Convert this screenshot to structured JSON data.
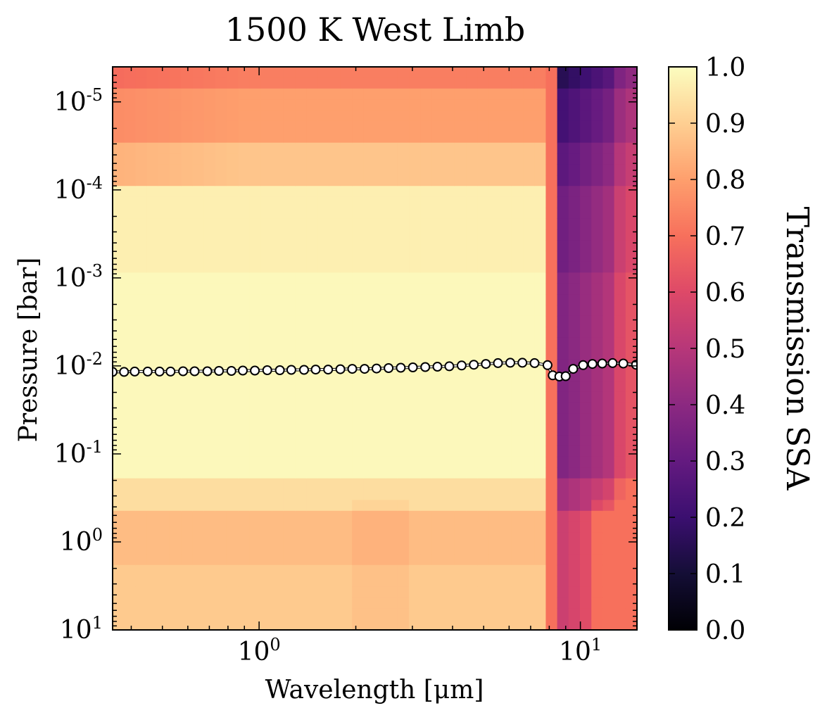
{
  "chart_data": {
    "type": "heatmap",
    "title": "1500 K West Limb",
    "xlabel": "Wavelength [μm]",
    "ylabel": "Pressure [bar]",
    "x_scale": "log",
    "y_scale": "log",
    "y_inverted": true,
    "xlim": [
      0.35,
      15.0
    ],
    "ylim_bar": [
      10.0,
      4e-06
    ],
    "x_ticks": [
      {
        "base": "10",
        "exp": "0",
        "value": 1
      },
      {
        "base": "10",
        "exp": "1",
        "value": 10
      }
    ],
    "y_ticks": [
      {
        "base": "10",
        "exp": "1",
        "value": 10
      },
      {
        "base": "10",
        "exp": "0",
        "value": 1
      },
      {
        "base": "10",
        "exp": "-1",
        "value": 0.1
      },
      {
        "base": "10",
        "exp": "-2",
        "value": 0.01
      },
      {
        "base": "10",
        "exp": "-3",
        "value": 0.001
      },
      {
        "base": "10",
        "exp": "-4",
        "value": 0.0001
      },
      {
        "base": "10",
        "exp": "-5",
        "value": 1e-05
      }
    ],
    "colorbar": {
      "label": "Transmission SSA",
      "colormap": "magma",
      "range": [
        0.0,
        1.0
      ],
      "ticks": [
        "0.0",
        "0.1",
        "0.2",
        "0.3",
        "0.4",
        "0.5",
        "0.6",
        "0.7",
        "0.8",
        "0.9",
        "1.0"
      ]
    },
    "ssa_by_pressure_band": [
      {
        "pressure_max_bar": 8e-06,
        "short_wave": 0.73,
        "ir_band_8_9um": 0.15
      },
      {
        "pressure_max_bar": 3e-05,
        "short_wave": 0.8,
        "ir_band_8_9um": 0.22
      },
      {
        "pressure_max_bar": 0.0001,
        "short_wave": 0.88,
        "ir_band_8_9um": 0.28
      },
      {
        "pressure_max_bar": 0.001,
        "short_wave": 0.97,
        "ir_band_8_9um": 0.33
      },
      {
        "pressure_max_bar": 0.2,
        "short_wave": 0.99,
        "ir_band_8_9um": 0.37
      },
      {
        "pressure_max_bar": 0.5,
        "short_wave": 0.93,
        "ir_band_8_9um": 0.45
      },
      {
        "pressure_max_bar": 2.0,
        "short_wave": 0.86,
        "ir_band_8_9um": 0.55
      },
      {
        "pressure_max_bar": 10.0,
        "short_wave": 0.89,
        "ir_band_8_9um": 0.55
      }
    ],
    "series": [
      {
        "name": "photosphere pressure (white circles)",
        "x_um": [
          0.35,
          0.38,
          0.41,
          0.45,
          0.49,
          0.53,
          0.58,
          0.63,
          0.69,
          0.75,
          0.82,
          0.89,
          0.97,
          1.06,
          1.16,
          1.26,
          1.38,
          1.5,
          1.64,
          1.79,
          1.95,
          2.13,
          2.32,
          2.53,
          2.76,
          3.01,
          3.29,
          3.59,
          3.91,
          4.27,
          4.66,
          5.08,
          5.54,
          6.05,
          6.6,
          7.2,
          7.9,
          8.2,
          8.6,
          9.0,
          9.5,
          10.2,
          10.9,
          11.7,
          12.6,
          13.6,
          14.9
        ],
        "pressure_bar": [
          0.0117,
          0.0117,
          0.0116,
          0.0116,
          0.0116,
          0.0116,
          0.0115,
          0.0115,
          0.0115,
          0.0114,
          0.0114,
          0.0113,
          0.0113,
          0.0112,
          0.0112,
          0.0111,
          0.0111,
          0.011,
          0.011,
          0.0109,
          0.0108,
          0.0108,
          0.0107,
          0.0106,
          0.0105,
          0.0104,
          0.0103,
          0.0102,
          0.0101,
          0.0099,
          0.0097,
          0.0095,
          0.0093,
          0.0092,
          0.0092,
          0.0093,
          0.0098,
          0.0128,
          0.0132,
          0.0131,
          0.0108,
          0.0098,
          0.0095,
          0.0094,
          0.0093,
          0.0094,
          0.0097
        ]
      }
    ]
  }
}
